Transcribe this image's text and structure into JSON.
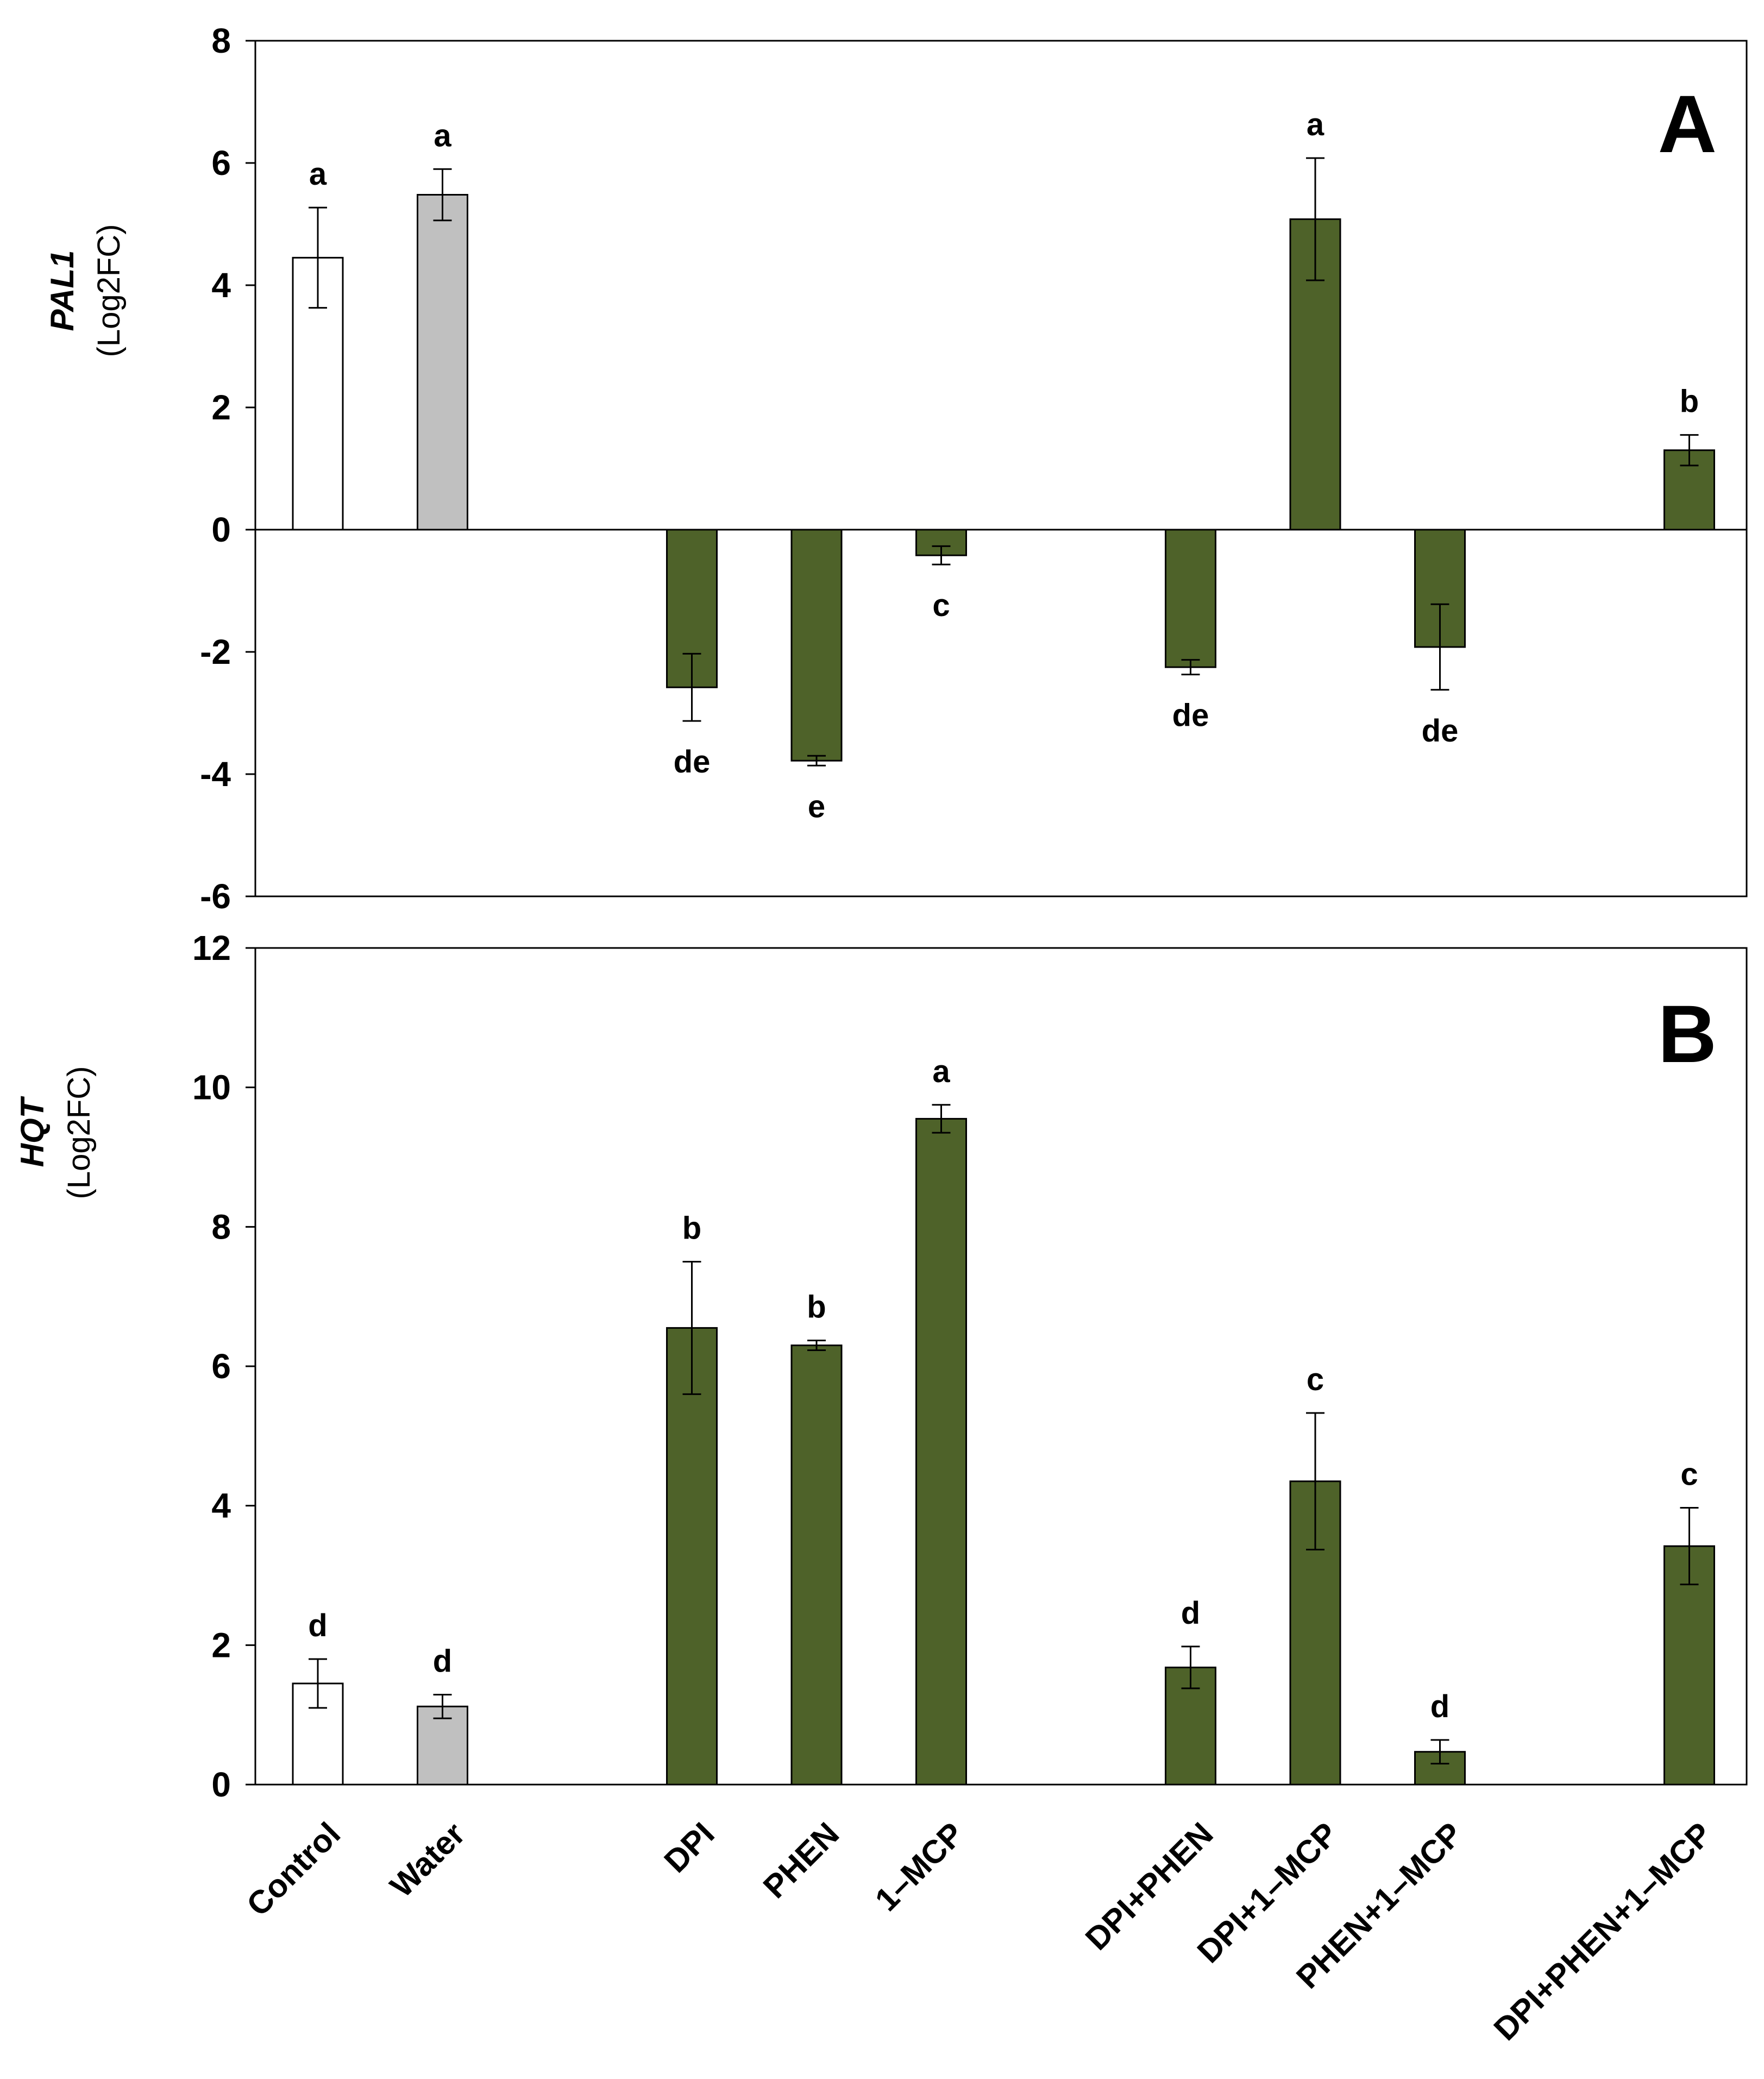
{
  "chart_data": [
    {
      "type": "bar",
      "panel_label": "A",
      "ylabel": {
        "gene": "PAL1",
        "unit": "(Log2FC)"
      },
      "ylim": [
        -6,
        8
      ],
      "yticks": [
        8,
        6,
        4,
        2,
        0,
        -2,
        -4,
        -6
      ],
      "grid": false,
      "categories": [
        "Control",
        "Water",
        "DPI",
        "PHEN",
        "1–MCP",
        "DPI+PHEN",
        "DPI+1–MCP",
        "PHEN+1–MCP",
        "DPI+PHEN+1–MCP"
      ],
      "values": [
        4.45,
        5.48,
        -2.58,
        -3.78,
        -0.42,
        -2.25,
        5.08,
        -1.92,
        1.3
      ],
      "errors": [
        0.82,
        0.42,
        0.55,
        0.08,
        0.15,
        0.12,
        1.0,
        0.7,
        0.25
      ],
      "letters": [
        "a",
        "a",
        "de",
        "e",
        "c",
        "de",
        "a",
        "de",
        "b"
      ],
      "colors": [
        "#ffffff",
        "#c0c0c0",
        "#4e6229",
        "#4e6229",
        "#4e6229",
        "#4e6229",
        "#4e6229",
        "#4e6229",
        "#4e6229"
      ]
    },
    {
      "type": "bar",
      "panel_label": "B",
      "ylabel": {
        "gene": "HQT",
        "unit": "(Log2FC)"
      },
      "ylim": [
        0,
        12
      ],
      "yticks": [
        12,
        10,
        8,
        6,
        4,
        2,
        0
      ],
      "grid": false,
      "categories": [
        "Control",
        "Water",
        "DPI",
        "PHEN",
        "1–MCP",
        "DPI+PHEN",
        "DPI+1–MCP",
        "PHEN+1–MCP",
        "DPI+PHEN+1–MCP"
      ],
      "values": [
        1.45,
        1.12,
        6.55,
        6.3,
        9.55,
        1.68,
        4.35,
        0.47,
        3.42
      ],
      "errors": [
        0.35,
        0.17,
        0.95,
        0.07,
        0.2,
        0.3,
        0.98,
        0.17,
        0.55
      ],
      "letters": [
        "d",
        "d",
        "b",
        "b",
        "a",
        "d",
        "c",
        "d",
        "c"
      ],
      "colors": [
        "#ffffff",
        "#c0c0c0",
        "#4e6229",
        "#4e6229",
        "#4e6229",
        "#4e6229",
        "#4e6229",
        "#4e6229",
        "#4e6229"
      ]
    }
  ]
}
